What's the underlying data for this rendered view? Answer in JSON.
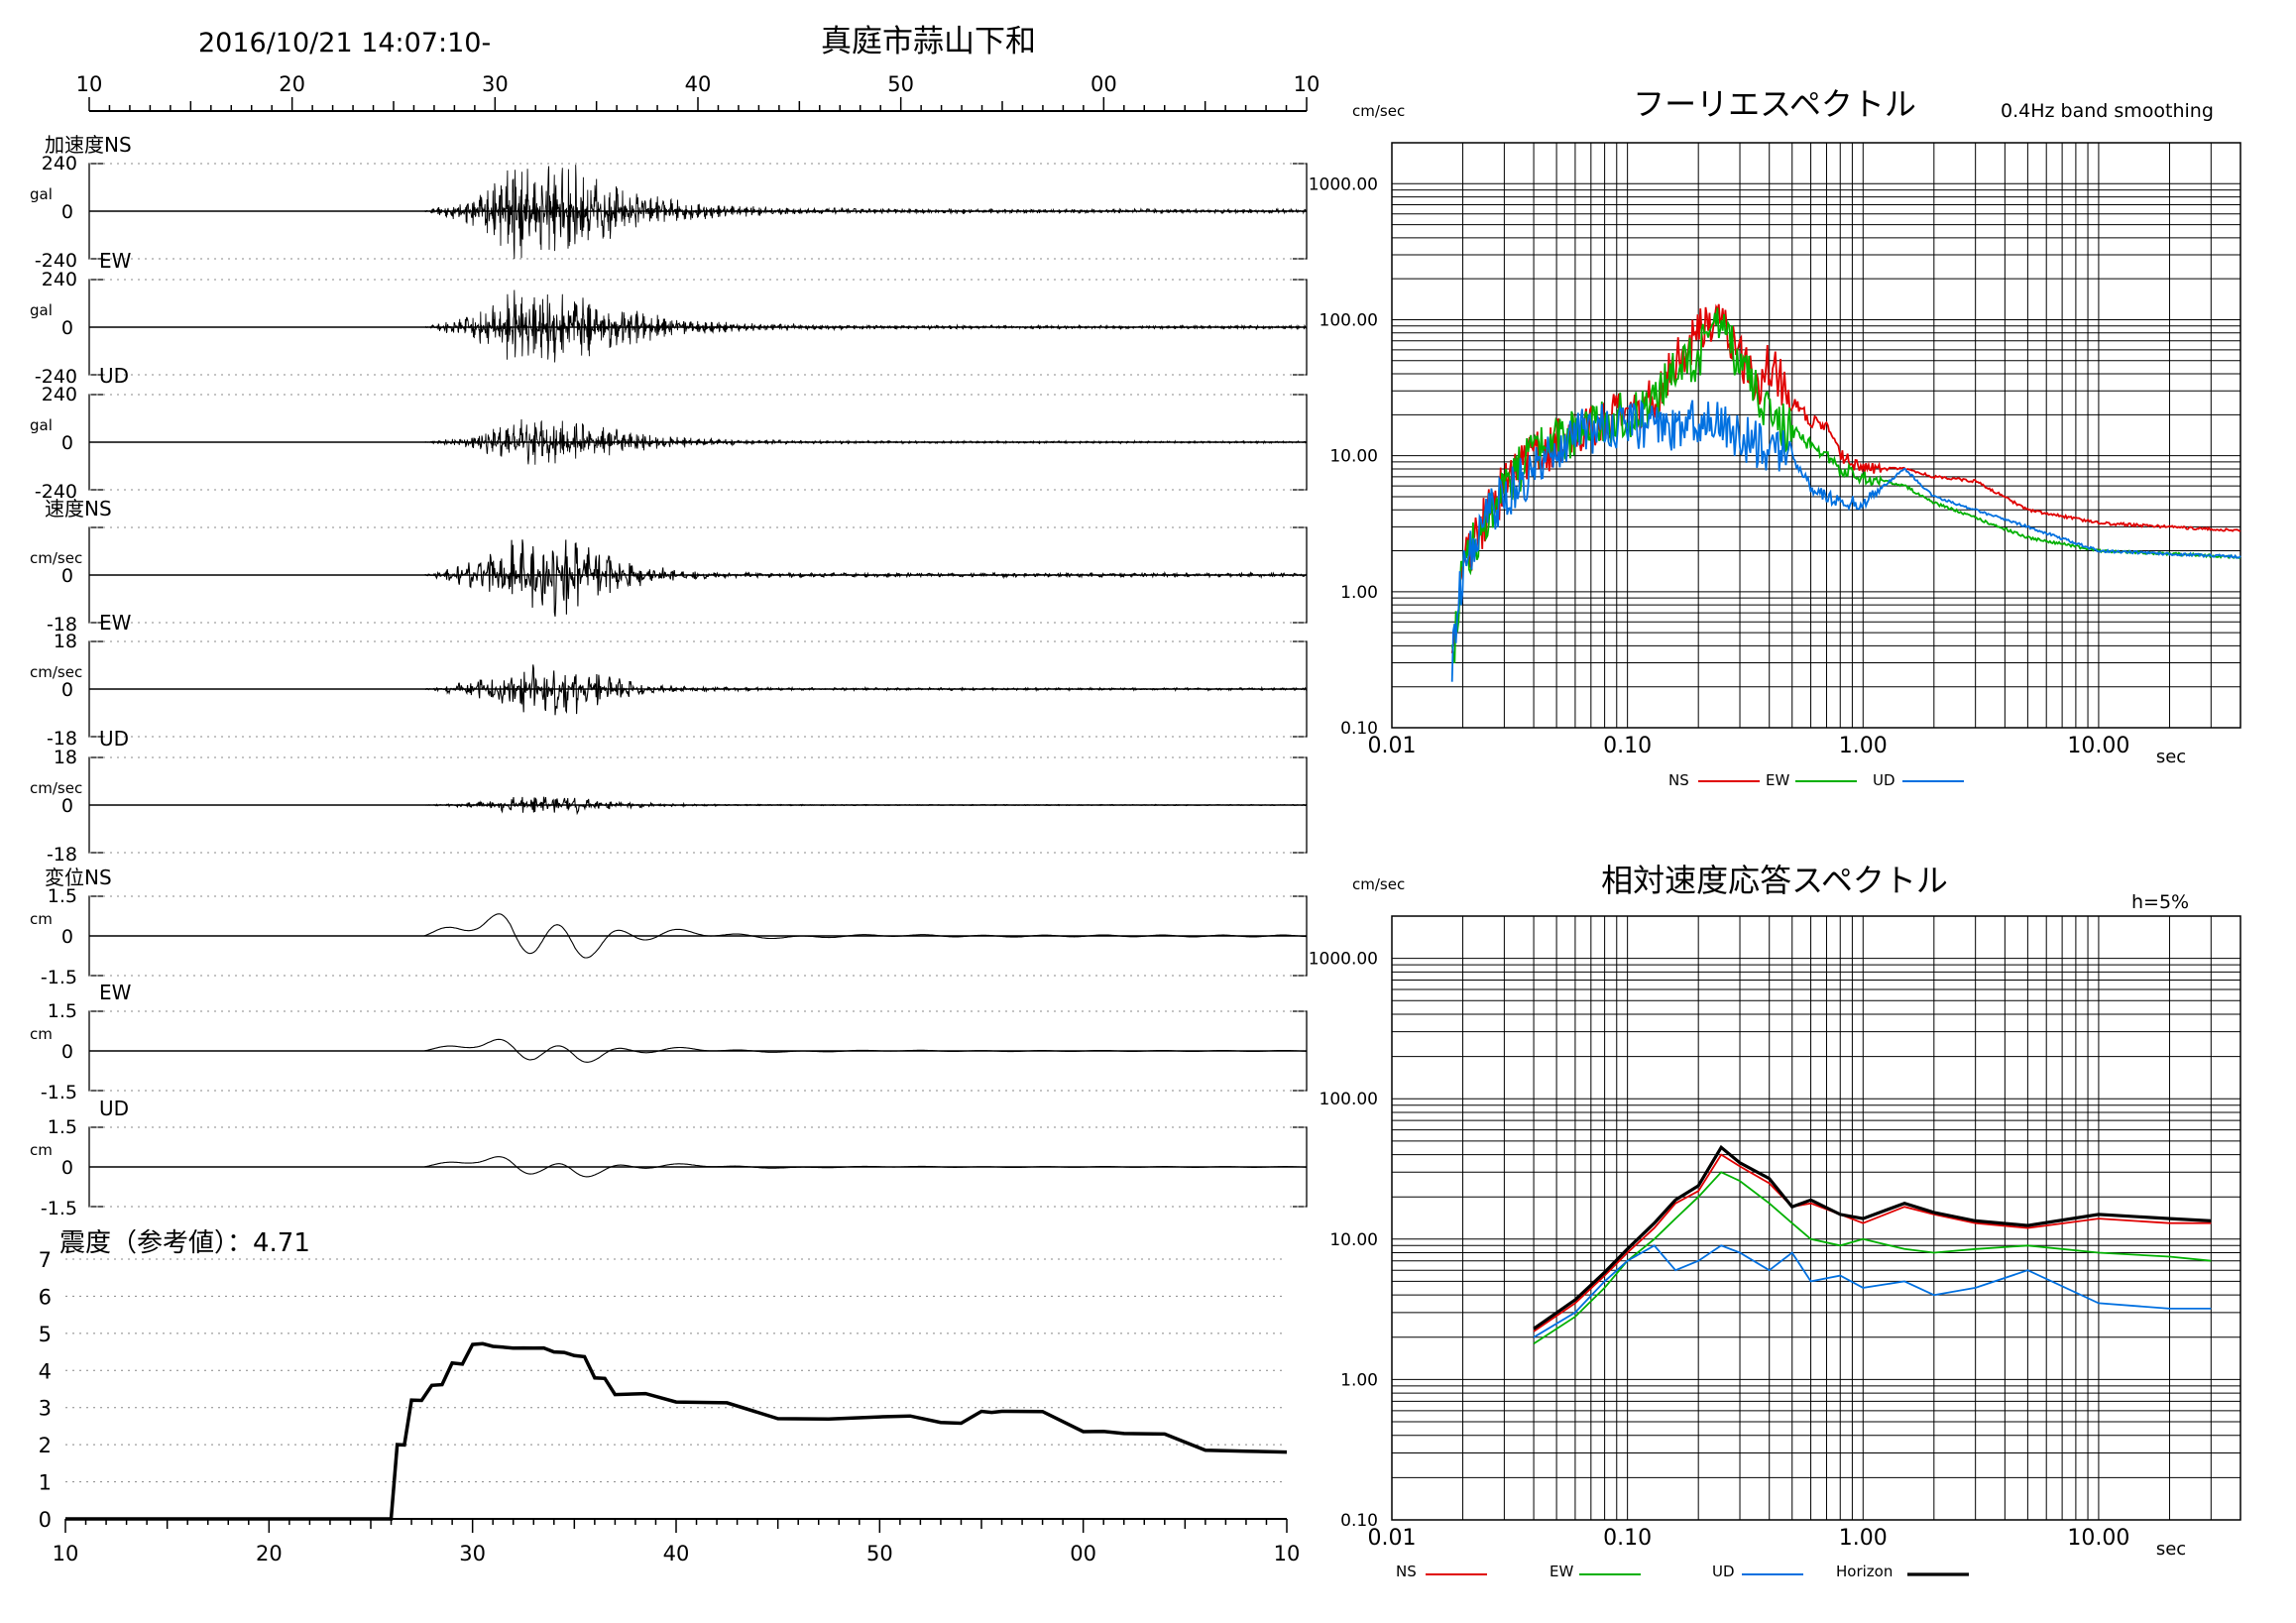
{
  "header": {
    "start_time": "2016/10/21 14:07:10-",
    "station": "真庭市蒜山下和"
  },
  "waveforms": {
    "time_ticks": [
      "10",
      "20",
      "30",
      "40",
      "50",
      "00",
      "10"
    ],
    "traces": [
      {
        "group": "加速度",
        "component": "NS",
        "unit": "gal",
        "max": "240",
        "zero": "0",
        "min": "-240",
        "amp": 1.0,
        "drift": 0.0
      },
      {
        "group": "",
        "component": "EW",
        "unit": "gal",
        "max": "240",
        "zero": "0",
        "min": "-240",
        "amp": 0.82,
        "drift": 0.0
      },
      {
        "group": "",
        "component": "UD",
        "unit": "gal",
        "max": "240",
        "zero": "0",
        "min": "-240",
        "amp": 0.5,
        "drift": 0.0
      },
      {
        "group": "速度",
        "component": "NS",
        "unit": "cm/sec",
        "max": "",
        "zero": "0",
        "min": "-18",
        "amp": 0.9,
        "drift": 0.0
      },
      {
        "group": "",
        "component": "EW",
        "unit": "cm/sec",
        "max": "18",
        "zero": "0",
        "min": "-18",
        "amp": 0.55,
        "drift": 0.0
      },
      {
        "group": "",
        "component": "UD",
        "unit": "cm/sec",
        "max": "18",
        "zero": "0",
        "min": "-18",
        "amp": 0.2,
        "drift": 0.0
      },
      {
        "group": "変位",
        "component": "NS",
        "unit": "cm",
        "max": "1.5",
        "zero": "0",
        "min": "-1.5",
        "amp": 0.5,
        "drift": 0.8
      },
      {
        "group": "",
        "component": "EW",
        "unit": "cm",
        "max": "1.5",
        "zero": "0",
        "min": "-1.5",
        "amp": 0.25,
        "drift": 0.45
      },
      {
        "group": "",
        "component": "UD",
        "unit": "cm",
        "max": "1.5",
        "zero": "0",
        "min": "-1.5",
        "amp": 0.2,
        "drift": 0.45
      }
    ]
  },
  "intensity": {
    "label": "震度（参考値）：4.71",
    "y_ticks": [
      "0",
      "1",
      "2",
      "3",
      "4",
      "5",
      "6",
      "7"
    ],
    "x_ticks": [
      "10",
      "20",
      "30",
      "40",
      "50",
      "00",
      "10"
    ]
  },
  "fourier": {
    "title": "フーリエスペクトル",
    "note": "0.4Hz band smoothing",
    "unit": "cm/sec",
    "x_unit": "sec",
    "y_ticks": [
      "0.10",
      "1.00",
      "10.00",
      "100.00",
      "1000.00"
    ],
    "x_ticks": [
      "0.01",
      "0.10",
      "1.00",
      "10.00"
    ],
    "legend": [
      {
        "name": "NS",
        "color": "#e00000"
      },
      {
        "name": "EW",
        "color": "#00b000"
      },
      {
        "name": "UD",
        "color": "#0070e0"
      }
    ]
  },
  "response": {
    "title": "相対速度応答スペクトル",
    "note": "h=5%",
    "unit": "cm/sec",
    "x_unit": "sec",
    "y_ticks": [
      "0.10",
      "1.00",
      "10.00",
      "100.00",
      "1000.00"
    ],
    "x_ticks": [
      "0.01",
      "0.10",
      "1.00",
      "10.00"
    ],
    "legend": [
      {
        "name": "NS",
        "color": "#e00000"
      },
      {
        "name": "EW",
        "color": "#00b000"
      },
      {
        "name": "UD",
        "color": "#0070e0"
      },
      {
        "name": "Horizon",
        "color": "#000000"
      }
    ]
  },
  "chart_data": [
    {
      "type": "line",
      "title": "",
      "xlabel": "",
      "ylabel": "震度",
      "x_ticks": [
        "10",
        "20",
        "30",
        "40",
        "50",
        "00",
        "10"
      ],
      "ylim": [
        0,
        7
      ],
      "x": [
        10,
        26,
        26.3,
        27,
        28,
        29,
        30,
        31,
        32,
        33,
        34,
        35,
        36,
        37,
        40,
        45,
        50,
        53,
        55,
        56,
        60,
        62,
        66,
        70
      ],
      "y": [
        0,
        0,
        2.0,
        3.2,
        3.6,
        4.2,
        4.7,
        4.65,
        4.6,
        4.6,
        4.5,
        4.4,
        3.8,
        3.35,
        3.15,
        2.7,
        2.75,
        2.6,
        2.9,
        2.9,
        2.35,
        2.3,
        1.85,
        1.8
      ]
    },
    {
      "type": "line",
      "title": "フーリエスペクトル",
      "xlabel": "sec",
      "ylabel": "cm/sec",
      "xscale": "log",
      "yscale": "log",
      "xlim": [
        0.01,
        40
      ],
      "ylim": [
        0.1,
        2000
      ],
      "series": [
        {
          "name": "NS",
          "x": [
            0.018,
            0.02,
            0.025,
            0.03,
            0.04,
            0.06,
            0.08,
            0.1,
            0.13,
            0.16,
            0.2,
            0.22,
            0.24,
            0.27,
            0.3,
            0.35,
            0.4,
            0.5,
            0.6,
            0.7,
            0.8,
            1.0,
            1.5,
            2.0,
            3.0,
            5.0,
            10.0,
            20.0,
            40.0
          ],
          "y": [
            0.3,
            1.5,
            3.5,
            6,
            10,
            15,
            18,
            20,
            25,
            50,
            80,
            95,
            110,
            80,
            60,
            30,
            50,
            25,
            18,
            16,
            10,
            8,
            8,
            7,
            6.5,
            4,
            3.2,
            3,
            2.8
          ]
        },
        {
          "name": "EW",
          "x": [
            0.018,
            0.02,
            0.025,
            0.03,
            0.04,
            0.06,
            0.08,
            0.1,
            0.13,
            0.16,
            0.2,
            0.22,
            0.24,
            0.27,
            0.3,
            0.35,
            0.4,
            0.5,
            0.6,
            0.7,
            0.8,
            1.0,
            1.5,
            2.0,
            3.0,
            5.0,
            10.0,
            20.0,
            40.0
          ],
          "y": [
            0.3,
            1.5,
            3.5,
            6,
            10,
            15,
            18,
            20,
            25,
            40,
            55,
            70,
            85,
            70,
            50,
            30,
            20,
            15,
            12,
            10,
            8,
            7,
            6,
            4.5,
            3.5,
            2.5,
            2,
            1.9,
            1.8
          ]
        },
        {
          "name": "UD",
          "x": [
            0.018,
            0.02,
            0.025,
            0.03,
            0.04,
            0.06,
            0.08,
            0.1,
            0.13,
            0.16,
            0.2,
            0.22,
            0.24,
            0.27,
            0.3,
            0.35,
            0.4,
            0.5,
            0.6,
            0.7,
            0.8,
            1.0,
            1.5,
            2.0,
            3.0,
            5.0,
            10.0,
            20.0,
            40.0
          ],
          "y": [
            0.3,
            1.5,
            3.5,
            5,
            8,
            15,
            16,
            17,
            16,
            15,
            18,
            20,
            18,
            15,
            14,
            12,
            11,
            10,
            6,
            5,
            4.5,
            4.5,
            8,
            5,
            4,
            3,
            2,
            1.9,
            1.8
          ]
        }
      ]
    },
    {
      "type": "line",
      "title": "相対速度応答スペクトル",
      "xlabel": "sec",
      "ylabel": "cm/sec",
      "xscale": "log",
      "yscale": "log",
      "xlim": [
        0.01,
        40
      ],
      "ylim": [
        0.1,
        2000
      ],
      "series": [
        {
          "name": "NS",
          "x": [
            0.04,
            0.06,
            0.08,
            0.1,
            0.13,
            0.16,
            0.2,
            0.25,
            0.3,
            0.4,
            0.5,
            0.6,
            0.8,
            1.0,
            1.5,
            2.0,
            3.0,
            5.0,
            10.0,
            20.0,
            30.0
          ],
          "y": [
            2.2,
            3.5,
            5.5,
            8,
            12,
            18,
            22,
            40,
            33,
            25,
            17,
            18,
            15,
            13,
            17,
            15,
            13,
            12,
            14,
            13,
            13
          ]
        },
        {
          "name": "EW",
          "x": [
            0.04,
            0.06,
            0.08,
            0.1,
            0.13,
            0.16,
            0.2,
            0.25,
            0.3,
            0.4,
            0.5,
            0.6,
            0.8,
            1.0,
            1.5,
            2.0,
            3.0,
            5.0,
            10.0,
            20.0,
            30.0
          ],
          "y": [
            1.8,
            2.8,
            4.5,
            7,
            10,
            14,
            20,
            30,
            26,
            18,
            13,
            10,
            9,
            10,
            8.5,
            8,
            8.5,
            9,
            8,
            7.5,
            7
          ]
        },
        {
          "name": "UD",
          "x": [
            0.04,
            0.06,
            0.08,
            0.1,
            0.13,
            0.16,
            0.2,
            0.25,
            0.3,
            0.4,
            0.5,
            0.6,
            0.8,
            1.0,
            1.5,
            2.0,
            3.0,
            5.0,
            10.0,
            20.0,
            30.0
          ],
          "y": [
            2.0,
            3,
            5,
            7,
            9,
            6,
            7,
            9,
            8,
            6,
            8,
            5,
            5.5,
            4.5,
            5,
            4,
            4.5,
            6,
            3.5,
            3.2,
            3.2
          ]
        },
        {
          "name": "Horizon",
          "x": [
            0.04,
            0.06,
            0.08,
            0.1,
            0.13,
            0.16,
            0.2,
            0.25,
            0.3,
            0.4,
            0.5,
            0.6,
            0.8,
            1.0,
            1.5,
            2.0,
            3.0,
            5.0,
            10.0,
            20.0,
            30.0
          ],
          "y": [
            2.3,
            3.7,
            5.8,
            8.5,
            13,
            19,
            24,
            45,
            35,
            27,
            17,
            19,
            15,
            14,
            18,
            15.5,
            13.5,
            12.5,
            15,
            14,
            13.5
          ]
        }
      ]
    }
  ]
}
